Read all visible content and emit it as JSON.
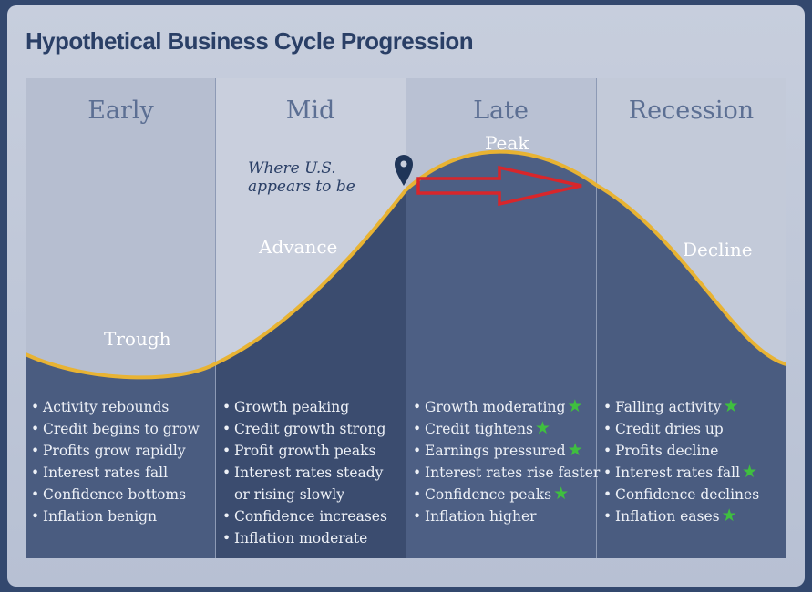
{
  "title": "Hypothetical Business Cycle Progression",
  "phases": [
    {
      "name": "Early",
      "curve_label": "Trough",
      "bullets": [
        "Activity rebounds",
        "Credit begins to grow",
        "Profits grow rapidly",
        "Interest rates fall",
        "Confidence bottoms",
        "Inflation benign"
      ]
    },
    {
      "name": "Mid",
      "curve_label": "Advance",
      "bullets": [
        "Growth peaking",
        "Credit growth strong",
        "Profit growth peaks",
        "Interest rates steady",
        "or rising slowly",
        "Confidence increases",
        "Inflation moderate"
      ]
    },
    {
      "name": "Late",
      "curve_label": "Peak",
      "bullets": [
        "Growth moderating",
        "Credit tightens",
        "Earnings pressured",
        "Interest rates rise faster",
        "Confidence peaks",
        "Inflation higher"
      ]
    },
    {
      "name": "Recession",
      "curve_label": "Decline",
      "bullets": [
        "Falling activity",
        "Credit dries up",
        "Profits decline",
        "Interest rates fall",
        "Confidence declines",
        "Inflation eases"
      ]
    }
  ],
  "annotation": "Where U.S. appears to be",
  "stars": [
    "Growth moderating",
    "Credit tightens",
    "Earnings pressured",
    "Confidence peaks",
    "Falling activity",
    "Interest rates fall",
    "Inflation eases"
  ],
  "colors": {
    "background": "#33486e",
    "frame": "#c3cbdc",
    "curve": "#e8b333",
    "marker": "#1f3558",
    "arrow": "#d8262b",
    "star": "#3fbf3f"
  }
}
